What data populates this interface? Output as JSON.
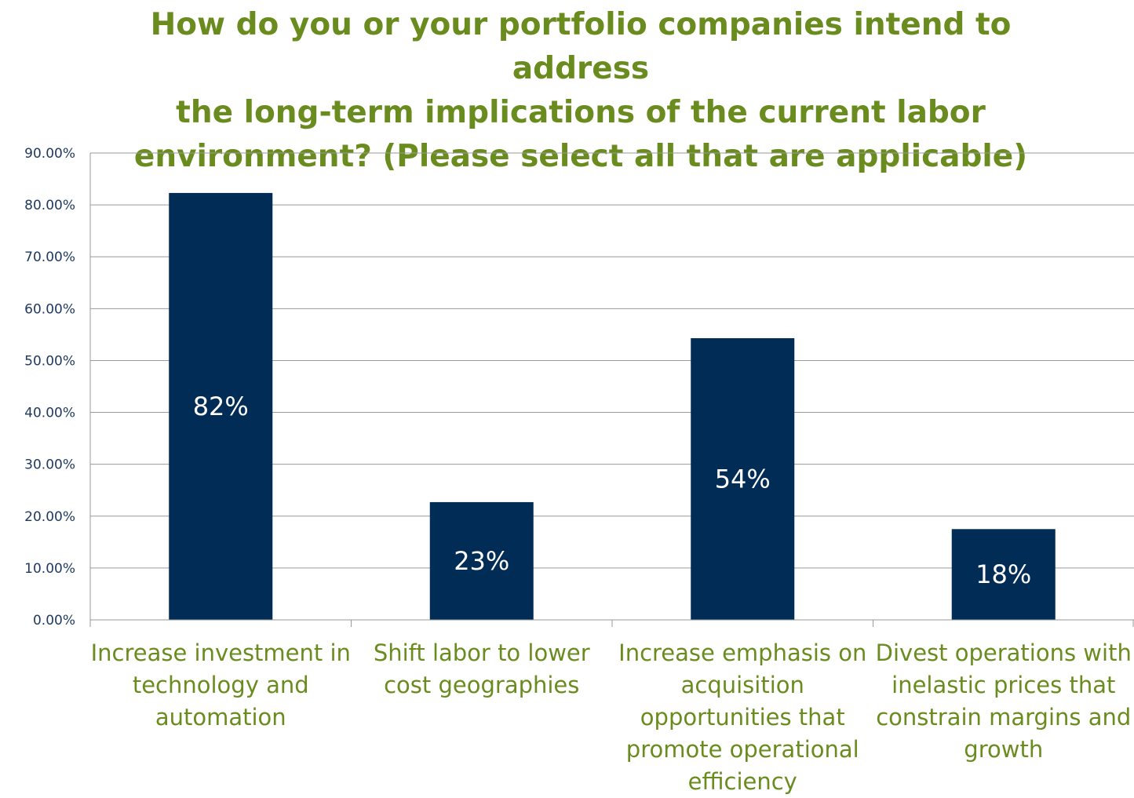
{
  "chart_data": {
    "type": "bar",
    "title_lines": [
      "How do you or your portfolio companies intend to address",
      "the long-term implications of the current labor",
      "environment? (Please select all that are applicable)"
    ],
    "categories": [
      "Increase investment in technology and automation",
      "Shift labor to lower cost geographies",
      "Increase emphasis on acquisition opportunities that promote operational efficiency",
      "Divest operations with inelastic prices that constrain margins and growth"
    ],
    "values": [
      82.3,
      22.7,
      54.3,
      17.5
    ],
    "data_labels": [
      "82%",
      "23%",
      "54%",
      "18%"
    ],
    "y_ticks": [
      "0.00%",
      "10.00%",
      "20.00%",
      "30.00%",
      "40.00%",
      "50.00%",
      "60.00%",
      "70.00%",
      "80.00%",
      "90.00%"
    ],
    "ylim": [
      0,
      90
    ],
    "grid": true,
    "bar_color": "#002c56",
    "title_color": "#6a8c1f",
    "label_color": "#6a8c1f",
    "tick_color": "#1f3a60"
  }
}
